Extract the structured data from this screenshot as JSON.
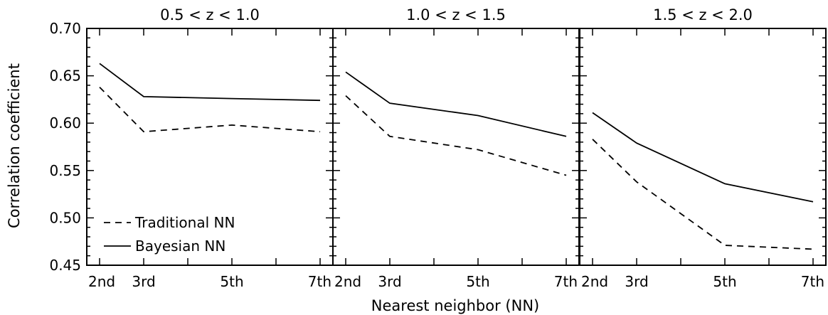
{
  "figure": {
    "ylabel": "Correlation coefficient",
    "xlabel": "Nearest neighbor (NN)",
    "legend": {
      "placement": "bottom-left of first panel",
      "entries": [
        {
          "label": "Traditional NN",
          "style": "dashed"
        },
        {
          "label": "Bayesian NN",
          "style": "solid"
        }
      ]
    }
  },
  "chart_data": [
    {
      "type": "line",
      "title": "0.5 < z < 1.0",
      "x": [
        2,
        3,
        5,
        7
      ],
      "categories": [
        "2nd",
        "3rd",
        "5th",
        "7th"
      ],
      "ylim": [
        0.45,
        0.7
      ],
      "yticks": [
        "0.45",
        "0.50",
        "0.55",
        "0.60",
        "0.65",
        "0.70"
      ],
      "series": [
        {
          "name": "Traditional NN",
          "style": "dashed",
          "values": [
            0.638,
            0.591,
            0.598,
            0.591
          ]
        },
        {
          "name": "Bayesian NN",
          "style": "solid",
          "values": [
            0.663,
            0.628,
            0.626,
            0.624
          ]
        }
      ]
    },
    {
      "type": "line",
      "title": "1.0 < z < 1.5",
      "x": [
        2,
        3,
        5,
        7
      ],
      "categories": [
        "2nd",
        "3rd",
        "5th",
        "7th"
      ],
      "ylim": [
        0.45,
        0.7
      ],
      "series": [
        {
          "name": "Traditional NN",
          "style": "dashed",
          "values": [
            0.629,
            0.586,
            0.572,
            0.545
          ]
        },
        {
          "name": "Bayesian NN",
          "style": "solid",
          "values": [
            0.654,
            0.621,
            0.608,
            0.586
          ]
        }
      ]
    },
    {
      "type": "line",
      "title": "1.5 < z < 2.0",
      "x": [
        2,
        3,
        5,
        7
      ],
      "categories": [
        "2nd",
        "3rd",
        "5th",
        "7th"
      ],
      "ylim": [
        0.45,
        0.7
      ],
      "series": [
        {
          "name": "Traditional NN",
          "style": "dashed",
          "values": [
            0.583,
            0.538,
            0.471,
            0.467
          ]
        },
        {
          "name": "Bayesian NN",
          "style": "solid",
          "values": [
            0.611,
            0.579,
            0.536,
            0.517
          ]
        }
      ]
    }
  ]
}
